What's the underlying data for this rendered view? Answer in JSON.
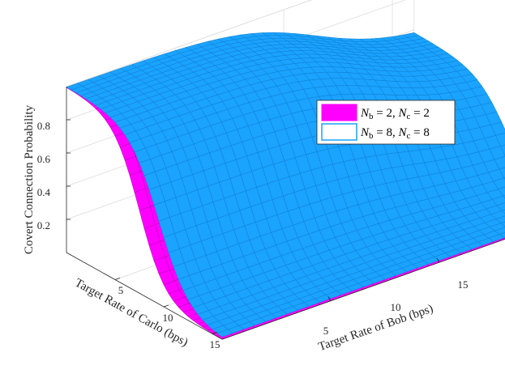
{
  "chart_data": {
    "type": "surface",
    "title": "",
    "xlabel": "Target Rate of Bob (bps)",
    "ylabel": "Target Rate of Carlo (bps)",
    "zlabel": "Covert Connection Probability",
    "x_ticks": [
      "5",
      "10",
      "15"
    ],
    "y_ticks": [
      "5",
      "10",
      "15"
    ],
    "z_ticks": [
      "0.2",
      "0.4",
      "0.6",
      "0.8"
    ],
    "xlim": [
      0,
      16
    ],
    "ylim": [
      0,
      16
    ],
    "zlim": [
      0,
      1
    ],
    "grid": true,
    "legend_position": "upper-right",
    "legend": [
      {
        "label": "N_b = 2, N_c = 2",
        "label_a": "N",
        "sub_a": "b",
        "mid": " = 2, ",
        "label_b": "N",
        "sub_b": "c",
        "tail": " = 2",
        "color": "#ff00ff"
      },
      {
        "label": "N_b = 8, N_c = 8",
        "label_a": "N",
        "sub_a": "b",
        "mid": " = 8, ",
        "label_b": "N",
        "sub_b": "c",
        "tail": " = 8",
        "color": "#1aa3ff"
      }
    ],
    "series": [
      {
        "name": "N_b = 2, N_c = 2",
        "y_midpoint": 7.5,
        "steepness": 0.75,
        "color": "#ff00ff"
      },
      {
        "name": "N_b = 8, N_c = 8",
        "y_midpoint": 9.5,
        "steepness": 0.65,
        "color": "#1aa3ff"
      }
    ]
  }
}
